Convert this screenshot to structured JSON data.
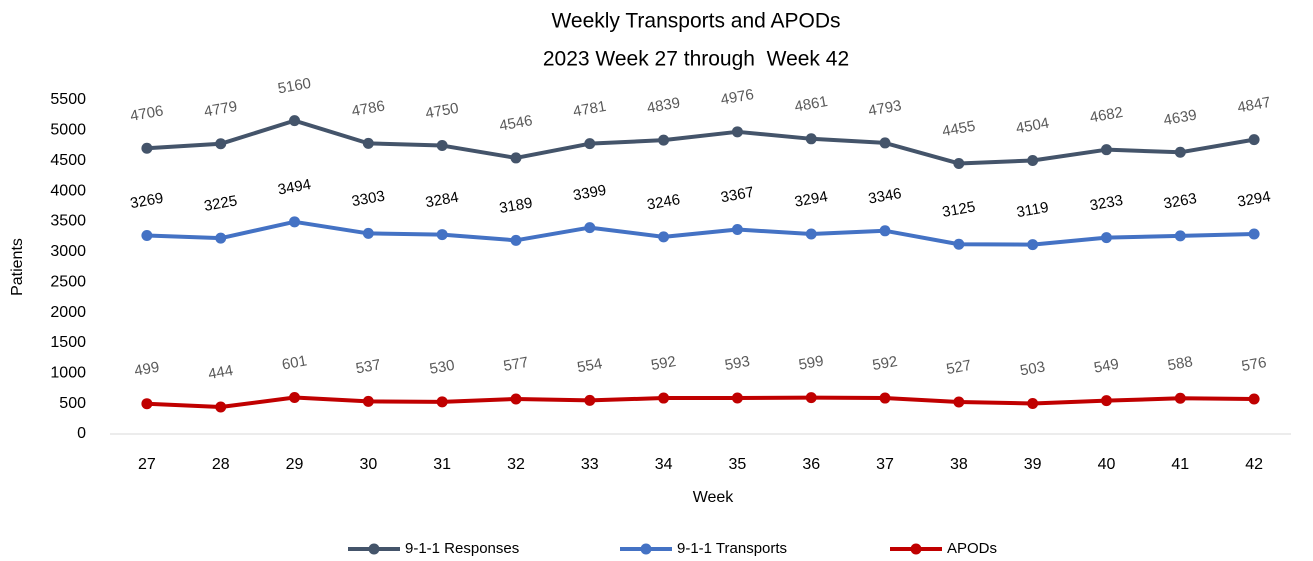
{
  "chart_data": {
    "type": "line",
    "title": "Weekly Transports and APODs",
    "subtitle": "2023 Week 27 through  Week 42",
    "x_label": "Week",
    "y_label": "Patients",
    "categories": [
      "27",
      "28",
      "29",
      "30",
      "31",
      "32",
      "33",
      "34",
      "35",
      "36",
      "37",
      "38",
      "39",
      "40",
      "41",
      "42"
    ],
    "series": [
      {
        "name": "9-1-1 Responses",
        "color": "#44546a",
        "values": [
          4706,
          4779,
          5160,
          4786,
          4750,
          4546,
          4781,
          4839,
          4976,
          4861,
          4793,
          4455,
          4504,
          4682,
          4639,
          4847
        ]
      },
      {
        "name": "9-1-1 Transports",
        "color": "#4472c4",
        "values": [
          3269,
          3225,
          3494,
          3303,
          3284,
          3189,
          3399,
          3246,
          3367,
          3294,
          3346,
          3125,
          3119,
          3233,
          3263,
          3294
        ]
      },
      {
        "name": "APODs",
        "color": "#c00000",
        "values": [
          499,
          444,
          601,
          537,
          530,
          577,
          554,
          592,
          593,
          599,
          592,
          527,
          503,
          549,
          588,
          576
        ]
      }
    ],
    "ylim": [
      0,
      5500
    ],
    "yticks": [
      0,
      500,
      1000,
      1500,
      2000,
      2500,
      3000,
      3500,
      4000,
      4500,
      5000,
      5500
    ],
    "grid": false,
    "legend": "bottom"
  }
}
